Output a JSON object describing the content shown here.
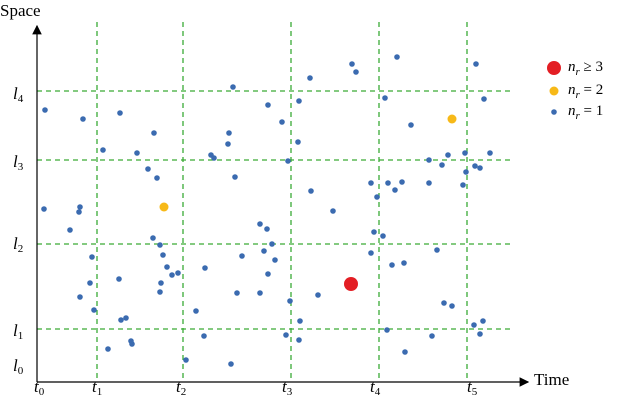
{
  "axes": {
    "y_label": "Space",
    "x_label": "Time"
  },
  "time_labels": [
    {
      "base": "t",
      "sub": "0"
    },
    {
      "base": "t",
      "sub": "1"
    },
    {
      "base": "t",
      "sub": "2"
    },
    {
      "base": "t",
      "sub": "3"
    },
    {
      "base": "t",
      "sub": "4"
    },
    {
      "base": "t",
      "sub": "5"
    }
  ],
  "space_labels": [
    {
      "base": "l",
      "sub": "0"
    },
    {
      "base": "l",
      "sub": "1"
    },
    {
      "base": "l",
      "sub": "2"
    },
    {
      "base": "l",
      "sub": "3"
    },
    {
      "base": "l",
      "sub": "4"
    }
  ],
  "legend": [
    {
      "base": "n",
      "sub": "r",
      "rest": " ≥ 3"
    },
    {
      "base": "n",
      "sub": "r",
      "rest": " = 2"
    },
    {
      "base": "n",
      "sub": "r",
      "rest": " = 1"
    }
  ]
}
